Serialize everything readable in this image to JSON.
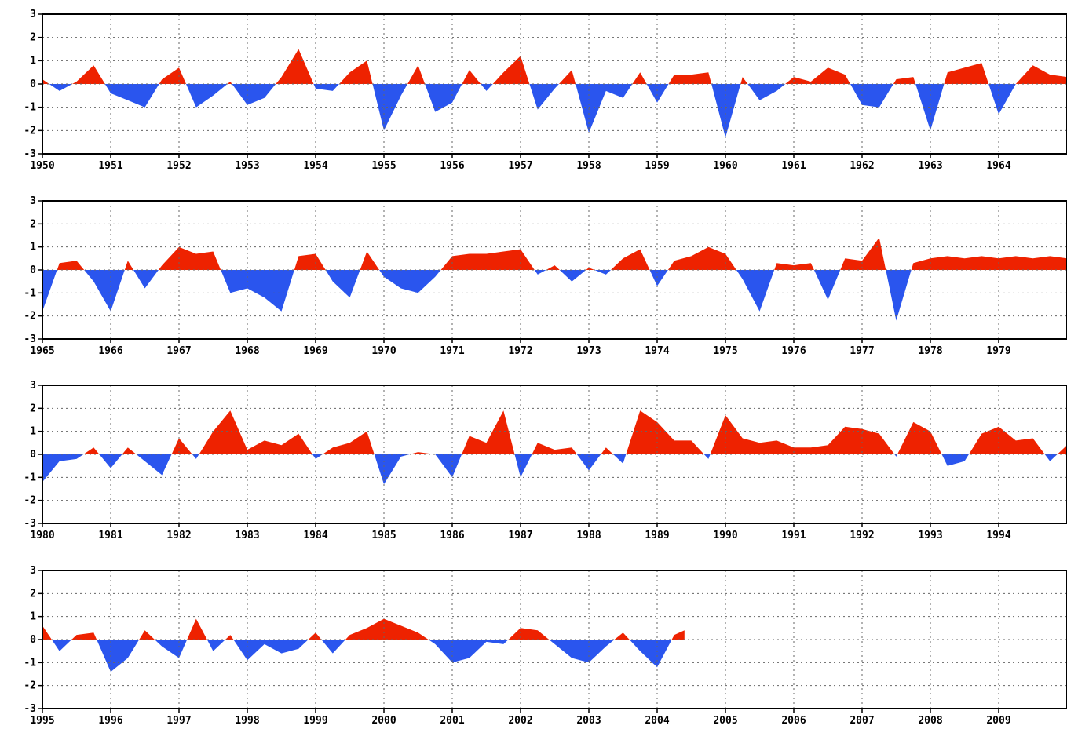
{
  "title_fragment": "",
  "colors": {
    "positive": "#ee2200",
    "negative": "#2a55ee",
    "grid": "#666666",
    "axis": "#000000"
  },
  "chart_data": [
    {
      "type": "area",
      "x_start": 1950,
      "x_end": 1965,
      "ylim": [
        -3,
        3
      ],
      "y_ticks": [
        3,
        2,
        1,
        0,
        -1,
        -2,
        -3
      ],
      "x_ticks": [
        "1950",
        "1951",
        "1952",
        "1953",
        "1954",
        "1955",
        "1956",
        "1957",
        "1958",
        "1959",
        "1960",
        "1961",
        "1962",
        "1963",
        "1964"
      ],
      "x": [
        1950.0,
        1950.25,
        1950.5,
        1950.75,
        1951.0,
        1951.25,
        1951.5,
        1951.75,
        1952.0,
        1952.25,
        1952.5,
        1952.75,
        1953.0,
        1953.25,
        1953.5,
        1953.75,
        1954.0,
        1954.25,
        1954.5,
        1954.75,
        1955.0,
        1955.25,
        1955.5,
        1955.75,
        1956.0,
        1956.25,
        1956.5,
        1956.75,
        1957.0,
        1957.25,
        1957.5,
        1957.75,
        1958.0,
        1958.25,
        1958.5,
        1958.75,
        1959.0,
        1959.25,
        1959.5,
        1959.75,
        1960.0,
        1960.25,
        1960.5,
        1960.75,
        1961.0,
        1961.25,
        1961.5,
        1961.75,
        1962.0,
        1962.25,
        1962.5,
        1962.75,
        1963.0,
        1963.25,
        1963.5,
        1963.75,
        1964.0,
        1964.25,
        1964.5,
        1964.75,
        1965.0
      ],
      "values": [
        0.2,
        -0.3,
        0.1,
        0.8,
        -0.4,
        -0.7,
        -1.0,
        0.2,
        0.7,
        -1.0,
        -0.5,
        0.1,
        -0.9,
        -0.6,
        0.3,
        1.5,
        -0.2,
        -0.3,
        0.5,
        1.0,
        -2.0,
        -0.5,
        0.8,
        -1.2,
        -0.8,
        0.6,
        -0.3,
        0.5,
        1.2,
        -1.1,
        -0.2,
        0.6,
        -2.1,
        -0.3,
        -0.6,
        0.5,
        -0.8,
        0.4,
        0.4,
        0.5,
        -2.3,
        0.3,
        -0.7,
        -0.3,
        0.3,
        0.1,
        0.7,
        0.4,
        -0.9,
        -1.0,
        0.2,
        0.3,
        -2.0,
        0.5,
        0.7,
        0.9,
        -1.3,
        0.0,
        0.8,
        0.4,
        0.3
      ]
    },
    {
      "type": "area",
      "x_start": 1965,
      "x_end": 1980,
      "ylim": [
        -3,
        3
      ],
      "y_ticks": [
        3,
        2,
        1,
        0,
        -1,
        -2,
        -3
      ],
      "x_ticks": [
        "1965",
        "1966",
        "1967",
        "1968",
        "1969",
        "1970",
        "1971",
        "1972",
        "1973",
        "1974",
        "1975",
        "1976",
        "1977",
        "1978",
        "1979"
      ],
      "x": [
        1965.0,
        1965.25,
        1965.5,
        1965.75,
        1966.0,
        1966.25,
        1966.5,
        1966.75,
        1967.0,
        1967.25,
        1967.5,
        1967.75,
        1968.0,
        1968.25,
        1968.5,
        1968.75,
        1969.0,
        1969.25,
        1969.5,
        1969.75,
        1970.0,
        1970.25,
        1970.5,
        1970.75,
        1971.0,
        1971.25,
        1971.5,
        1971.75,
        1972.0,
        1972.25,
        1972.5,
        1972.75,
        1973.0,
        1973.25,
        1973.5,
        1973.75,
        1974.0,
        1974.25,
        1974.5,
        1974.75,
        1975.0,
        1975.25,
        1975.5,
        1975.75,
        1976.0,
        1976.25,
        1976.5,
        1976.75,
        1977.0,
        1977.25,
        1977.5,
        1977.75,
        1978.0,
        1978.25,
        1978.5,
        1978.75,
        1979.0,
        1979.25,
        1979.5,
        1979.75,
        1980.0
      ],
      "values": [
        -1.8,
        0.3,
        0.4,
        -0.5,
        -1.8,
        0.4,
        -0.8,
        0.2,
        1.0,
        0.7,
        0.8,
        -1.0,
        -0.8,
        -1.2,
        -1.8,
        0.6,
        0.7,
        -0.5,
        -1.2,
        0.8,
        -0.3,
        -0.8,
        -1.0,
        -0.3,
        0.6,
        0.7,
        0.7,
        0.8,
        0.9,
        -0.2,
        0.2,
        -0.5,
        0.1,
        -0.2,
        0.5,
        0.9,
        -0.7,
        0.4,
        0.6,
        1.0,
        0.7,
        -0.4,
        -1.8,
        0.3,
        0.2,
        0.3,
        -1.3,
        0.5,
        0.4,
        1.4,
        -2.2,
        0.3,
        0.5,
        0.6,
        0.5,
        0.6,
        0.5,
        0.6,
        0.5,
        0.6,
        0.5
      ]
    },
    {
      "type": "area",
      "x_start": 1980,
      "x_end": 1995,
      "ylim": [
        -3,
        3
      ],
      "y_ticks": [
        3,
        2,
        1,
        0,
        -1,
        -2,
        -3
      ],
      "x_ticks": [
        "1980",
        "1981",
        "1982",
        "1983",
        "1984",
        "1985",
        "1986",
        "1987",
        "1988",
        "1989",
        "1990",
        "1991",
        "1992",
        "1993",
        "1994"
      ],
      "x": [
        1980.0,
        1980.25,
        1980.5,
        1980.75,
        1981.0,
        1981.25,
        1981.5,
        1981.75,
        1982.0,
        1982.25,
        1982.5,
        1982.75,
        1983.0,
        1983.25,
        1983.5,
        1983.75,
        1984.0,
        1984.25,
        1984.5,
        1984.75,
        1985.0,
        1985.25,
        1985.5,
        1985.75,
        1986.0,
        1986.25,
        1986.5,
        1986.75,
        1987.0,
        1987.25,
        1987.5,
        1987.75,
        1988.0,
        1988.25,
        1988.5,
        1988.75,
        1989.0,
        1989.25,
        1989.5,
        1989.75,
        1990.0,
        1990.25,
        1990.5,
        1990.75,
        1991.0,
        1991.25,
        1991.5,
        1991.75,
        1992.0,
        1992.25,
        1992.5,
        1992.75,
        1993.0,
        1993.25,
        1993.5,
        1993.75,
        1994.0,
        1994.25,
        1994.5,
        1994.75,
        1995.0
      ],
      "values": [
        -1.2,
        -0.3,
        -0.2,
        0.3,
        -0.6,
        0.3,
        -0.3,
        -0.9,
        0.7,
        -0.2,
        1.0,
        1.9,
        0.2,
        0.6,
        0.4,
        0.9,
        -0.2,
        0.3,
        0.5,
        1.0,
        -1.3,
        -0.1,
        0.1,
        0.0,
        -1.0,
        0.8,
        0.5,
        1.9,
        -1.0,
        0.5,
        0.2,
        0.3,
        -0.7,
        0.3,
        -0.4,
        1.9,
        1.4,
        0.6,
        0.6,
        -0.2,
        1.7,
        0.7,
        0.5,
        0.6,
        0.3,
        0.3,
        0.4,
        1.2,
        1.1,
        0.9,
        -0.1,
        1.4,
        1.0,
        -0.5,
        -0.3,
        0.9,
        1.2,
        0.6,
        0.7,
        -0.3,
        0.4
      ]
    },
    {
      "type": "area",
      "x_start": 1995,
      "x_end": 2010,
      "ylim": [
        -3,
        3
      ],
      "y_ticks": [
        3,
        2,
        1,
        0,
        -1,
        -2,
        -3
      ],
      "x_ticks": [
        "1995",
        "1996",
        "1997",
        "1998",
        "1999",
        "2000",
        "2001",
        "2002",
        "2003",
        "2004",
        "2005",
        "2006",
        "2007",
        "2008",
        "2009"
      ],
      "x": [
        1995.0,
        1995.25,
        1995.5,
        1995.75,
        1996.0,
        1996.25,
        1996.5,
        1996.75,
        1997.0,
        1997.25,
        1997.5,
        1997.75,
        1998.0,
        1998.25,
        1998.5,
        1998.75,
        1999.0,
        1999.25,
        1999.5,
        1999.75,
        2000.0,
        2000.25,
        2000.5,
        2000.75,
        2001.0,
        2001.25,
        2001.5,
        2001.75,
        2002.0,
        2002.25,
        2002.5,
        2002.75,
        2003.0,
        2003.25,
        2003.5,
        2003.75,
        2004.0,
        2004.25,
        2004.4
      ],
      "values": [
        0.6,
        -0.5,
        0.2,
        0.3,
        -1.4,
        -0.8,
        0.4,
        -0.3,
        -0.8,
        0.9,
        -0.5,
        0.2,
        -0.9,
        -0.2,
        -0.6,
        -0.4,
        0.3,
        -0.6,
        0.2,
        0.5,
        0.9,
        0.6,
        0.3,
        -0.2,
        -1.0,
        -0.8,
        -0.1,
        -0.2,
        0.5,
        0.4,
        -0.2,
        -0.8,
        -1.0,
        -0.3,
        0.3,
        -0.5,
        -1.2,
        0.2,
        0.4
      ]
    }
  ]
}
